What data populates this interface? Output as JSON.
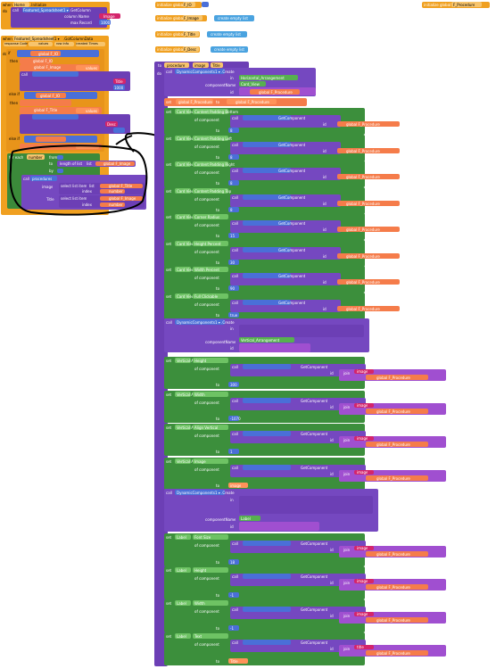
{
  "event": {
    "when": "when",
    "component": "Home",
    "event": ".Initialize",
    "do": "do",
    "call": "call",
    "method": "Featured_Spreadsheet1 ▾ .GetColumn",
    "col_label": "column Name",
    "max_label": "max Record",
    "col_val": "Image",
    "max_val": "1000"
  },
  "event2": {
    "when": "when",
    "component": "Featured_Spreadsheet1 ▾",
    "event": ".GotColumnData",
    "params": [
      "response Code",
      "values",
      "row Info",
      "created Times"
    ]
  },
  "event_body": {
    "do": "do",
    "if": "if",
    "then": "then",
    "else_if": "else if",
    "set": "set",
    "to": "to",
    "global_fo": "global F_IO",
    "global_image": "global F_Image",
    "global_title": "global F_Title",
    "values": "values",
    "get": "get",
    "col_title": "Title",
    "col_desc": "Desc",
    "max_val": "1000",
    "call": "call",
    "for_each": "for each",
    "number": "number",
    "from": "from",
    "to_label": "to",
    "by": "by",
    "length_of_list": "length of list",
    "list": "list",
    "procedures": "procedures",
    "image_param": "image",
    "title_param": "Title",
    "select_list_item": "select list item",
    "index": "index"
  },
  "globals": [
    {
      "init": "initialize global",
      "name": "F_IO",
      "to": "to",
      "value": "0"
    },
    {
      "init": "initialize global",
      "name": "F_Image",
      "to": "to",
      "value": "create empty list"
    },
    {
      "init": "initialize global",
      "name": "F_Title",
      "to": "to",
      "value": "create empty list"
    },
    {
      "init": "initialize global",
      "name": "F_Desc",
      "to": "to",
      "value": "create empty list"
    },
    {
      "init": "initialize global",
      "name": "F_Procedure",
      "to": "to",
      "value": "0"
    }
  ],
  "proc": {
    "to": "to",
    "name": "procedure",
    "params": [
      "image",
      "Title"
    ],
    "do": "do",
    "call": "call",
    "create": "DynamicComponents1 ▾ .Create",
    "in": "in",
    "component_name": "componentName",
    "id": "id",
    "horizontal": "Horizontal_Arrangement",
    "card": "Card_View",
    "vertical": "Vertical_Arrangement",
    "label": "Label",
    "set": "set",
    "to_kw": "to",
    "of_component": "of component",
    "get_component": "GetComponent",
    "get": "get",
    "global_proc": "global F_Procedure",
    "join": "join",
    "rows": [
      {
        "comp": "Card View",
        "prop": "Content Padding Bottom",
        "val": "8"
      },
      {
        "comp": "Card View",
        "prop": "Content Padding Left",
        "val": "8"
      },
      {
        "comp": "Card View",
        "prop": "Content Padding Right",
        "val": "8"
      },
      {
        "comp": "Card View",
        "prop": "Content Padding Top",
        "val": "8"
      },
      {
        "comp": "Card View",
        "prop": "Corner Radius",
        "val": "15"
      },
      {
        "comp": "Card View",
        "prop": "Height Percent",
        "val": "30"
      },
      {
        "comp": "Card View",
        "prop": "Width Percent",
        "val": "90"
      },
      {
        "comp": "Card View",
        "prop": "Full Clickable",
        "val": "true"
      }
    ],
    "vrows": [
      {
        "comp": "Vertical Arrangement",
        "prop": "Height",
        "val": "300"
      },
      {
        "comp": "Vertical Arrangement",
        "prop": "Width",
        "val": "-1070"
      },
      {
        "comp": "Vertical Arrangement",
        "prop": "Align Vertical",
        "val": "1"
      },
      {
        "comp": "Vertical Arrangement",
        "prop": "Image",
        "val": "image"
      }
    ],
    "lrows": [
      {
        "comp": "Label",
        "prop": "Font Size",
        "val": "18"
      },
      {
        "comp": "Label",
        "prop": "Height",
        "val": "-1"
      },
      {
        "comp": "Label",
        "prop": "Width",
        "val": "-1"
      },
      {
        "comp": "Label",
        "prop": "Text",
        "val": "Title"
      }
    ],
    "image_kw": "image",
    "title_kw": "title"
  }
}
